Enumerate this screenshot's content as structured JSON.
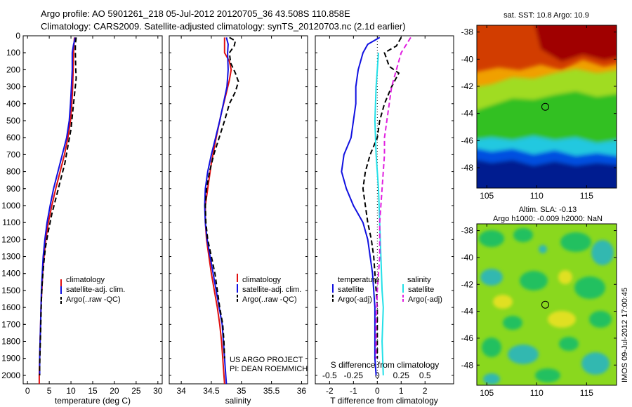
{
  "header": {
    "title_line1": "Argo profile: AO 5901261_218 05-Jul-2012 20120705_36 43.508S 110.858E",
    "title_line2": "Climatology: CARS2009. Satellite-adjusted climatology: synTS_20120703.nc (2.1d earlier)"
  },
  "colors": {
    "climatology": "#e01010",
    "satellite": "#1010e0",
    "argo": "#000000",
    "cyan": "#22e0e8",
    "magenta": "#e020e0"
  },
  "chart_data": [
    {
      "type": "line",
      "name": "temperature-panel",
      "xlabel": "temperature (deg C)",
      "ylabel": "",
      "xlim": [
        -1,
        31
      ],
      "ylim": [
        2050,
        0
      ],
      "xticks": [
        "0",
        "5",
        "10",
        "15",
        "20",
        "25",
        "30"
      ],
      "yticks": [
        "0",
        "100",
        "200",
        "300",
        "400",
        "500",
        "600",
        "700",
        "800",
        "900",
        "1000",
        "1100",
        "1200",
        "1300",
        "1400",
        "1500",
        "1600",
        "1700",
        "1800",
        "1900",
        "2000"
      ],
      "legend": [
        "climatology",
        "satellite-adj. clim.",
        "Argo(..raw -QC)"
      ],
      "legend_placement": "lower-center",
      "series": [
        {
          "name": "climatology",
          "color": "#e01010",
          "dash": "solid",
          "points": [
            [
              10.8,
              10
            ],
            [
              10.7,
              50
            ],
            [
              10.6,
              100
            ],
            [
              10.5,
              200
            ],
            [
              10.4,
              300
            ],
            [
              10.2,
              400
            ],
            [
              9.9,
              500
            ],
            [
              9.3,
              600
            ],
            [
              8.5,
              700
            ],
            [
              7.5,
              800
            ],
            [
              6.5,
              900
            ],
            [
              5.6,
              1000
            ],
            [
              4.8,
              1100
            ],
            [
              4.2,
              1200
            ],
            [
              3.8,
              1300
            ],
            [
              3.5,
              1400
            ],
            [
              3.3,
              1500
            ],
            [
              3.1,
              1600
            ],
            [
              3.0,
              1700
            ],
            [
              2.9,
              1800
            ],
            [
              2.8,
              1900
            ],
            [
              2.7,
              2000
            ],
            [
              2.7,
              2050
            ]
          ]
        },
        {
          "name": "satellite-adj. clim.",
          "color": "#1010e0",
          "dash": "solid",
          "points": [
            [
              11.0,
              10
            ],
            [
              10.6,
              50
            ],
            [
              10.3,
              100
            ],
            [
              10.3,
              200
            ],
            [
              10.1,
              300
            ],
            [
              9.9,
              400
            ],
            [
              9.6,
              500
            ],
            [
              9.0,
              600
            ],
            [
              8.0,
              700
            ],
            [
              7.0,
              800
            ],
            [
              6.0,
              900
            ],
            [
              5.2,
              1000
            ],
            [
              4.5,
              1100
            ],
            [
              4.0,
              1200
            ],
            [
              3.6,
              1300
            ],
            [
              3.4,
              1400
            ],
            [
              3.2,
              1500
            ],
            [
              3.1,
              1600
            ],
            [
              3.0,
              1700
            ],
            [
              2.9,
              1800
            ],
            [
              2.8,
              1900
            ],
            [
              2.8,
              2000
            ]
          ]
        },
        {
          "name": "Argo(..raw -QC)",
          "color": "#000000",
          "dash": "dashed",
          "points": [
            [
              11.2,
              10
            ],
            [
              11.0,
              50
            ],
            [
              11.0,
              100
            ],
            [
              11.1,
              200
            ],
            [
              11.2,
              250
            ],
            [
              10.8,
              350
            ],
            [
              10.4,
              450
            ],
            [
              10.0,
              550
            ],
            [
              9.3,
              650
            ],
            [
              8.6,
              750
            ],
            [
              7.6,
              850
            ],
            [
              6.6,
              950
            ],
            [
              5.6,
              1050
            ],
            [
              4.8,
              1150
            ],
            [
              4.1,
              1250
            ],
            [
              3.7,
              1350
            ],
            [
              3.4,
              1450
            ],
            [
              3.2,
              1550
            ],
            [
              3.1,
              1650
            ],
            [
              3.0,
              1750
            ],
            [
              2.9,
              1850
            ],
            [
              2.8,
              1950
            ],
            [
              2.8,
              2000
            ]
          ]
        }
      ]
    },
    {
      "type": "line",
      "name": "salinity-panel",
      "xlabel": "salinity",
      "xlim": [
        33.8,
        36.1
      ],
      "ylim": [
        2050,
        0
      ],
      "xticks": [
        "34",
        "34.5",
        "35",
        "35.5",
        "36"
      ],
      "legend": [
        "climatology",
        "satellite-adj. clim.",
        "Argo(..raw -QC)"
      ],
      "legend_placement": "lower-center",
      "series": [
        {
          "name": "climatology",
          "color": "#e01010",
          "dash": "solid",
          "points": [
            [
              34.72,
              10
            ],
            [
              34.72,
              50
            ],
            [
              34.72,
              100
            ],
            [
              34.8,
              150
            ],
            [
              34.83,
              200
            ],
            [
              34.8,
              260
            ],
            [
              34.74,
              350
            ],
            [
              34.67,
              450
            ],
            [
              34.58,
              600
            ],
            [
              34.5,
              750
            ],
            [
              34.44,
              900
            ],
            [
              34.4,
              1000
            ],
            [
              34.4,
              1100
            ],
            [
              34.42,
              1200
            ],
            [
              34.46,
              1300
            ],
            [
              34.5,
              1400
            ],
            [
              34.55,
              1500
            ],
            [
              34.6,
              1600
            ],
            [
              34.64,
              1700
            ],
            [
              34.67,
              1800
            ],
            [
              34.69,
              1900
            ],
            [
              34.71,
              2000
            ],
            [
              34.72,
              2050
            ]
          ]
        },
        {
          "name": "satellite-adj. clim.",
          "color": "#1010e0",
          "dash": "solid",
          "points": [
            [
              34.75,
              10
            ],
            [
              34.78,
              50
            ],
            [
              34.77,
              100
            ],
            [
              34.78,
              200
            ],
            [
              34.76,
              300
            ],
            [
              34.7,
              400
            ],
            [
              34.64,
              500
            ],
            [
              34.57,
              600
            ],
            [
              34.5,
              700
            ],
            [
              34.44,
              800
            ],
            [
              34.4,
              900
            ],
            [
              34.39,
              1000
            ],
            [
              34.4,
              1100
            ],
            [
              34.43,
              1200
            ],
            [
              34.48,
              1300
            ],
            [
              34.53,
              1400
            ],
            [
              34.58,
              1500
            ],
            [
              34.63,
              1600
            ],
            [
              34.68,
              1700
            ],
            [
              34.7,
              1800
            ],
            [
              34.72,
              1900
            ],
            [
              34.74,
              2000
            ],
            [
              34.75,
              2050
            ]
          ]
        },
        {
          "name": "Argo(..raw -QC)",
          "color": "#000000",
          "dash": "dashed",
          "points": [
            [
              34.8,
              10
            ],
            [
              34.9,
              30
            ],
            [
              34.88,
              60
            ],
            [
              34.8,
              100
            ],
            [
              34.82,
              160
            ],
            [
              34.9,
              220
            ],
            [
              34.95,
              270
            ],
            [
              34.9,
              330
            ],
            [
              34.8,
              400
            ],
            [
              34.72,
              500
            ],
            [
              34.63,
              600
            ],
            [
              34.54,
              700
            ],
            [
              34.47,
              800
            ],
            [
              34.42,
              900
            ],
            [
              34.4,
              1000
            ],
            [
              34.41,
              1100
            ],
            [
              34.44,
              1200
            ],
            [
              34.5,
              1300
            ],
            [
              34.56,
              1400
            ],
            [
              34.6,
              1500
            ],
            [
              34.64,
              1600
            ],
            [
              34.69,
              1700
            ],
            [
              34.71,
              1800
            ],
            [
              34.72,
              1900
            ]
          ]
        }
      ]
    },
    {
      "type": "line",
      "name": "difference-panel",
      "xlabel": "T difference from climatology",
      "top_axis_label": "S difference from climatology",
      "xlim": [
        -2.6,
        3.2
      ],
      "ylim": [
        2050,
        0
      ],
      "xticks": [
        "-2",
        "-1",
        "0",
        "1",
        "2"
      ],
      "top_ticks": [
        "-0.5",
        "-0.25",
        "0",
        "0.25",
        "0.5"
      ],
      "legend_groups": [
        {
          "heading": "temperature",
          "entries": [
            "satellite",
            "Argo(-adj)"
          ]
        },
        {
          "heading": "salinity",
          "entries": [
            "satellite",
            "Argo(-adj)"
          ]
        }
      ],
      "legend_placement": "lower-center",
      "series": [
        {
          "name": "temperature satellite",
          "color": "#1010e0",
          "dash": "solid",
          "points": [
            [
              0.1,
              10
            ],
            [
              -0.4,
              50
            ],
            [
              -0.6,
              100
            ],
            [
              -0.8,
              200
            ],
            [
              -0.9,
              300
            ],
            [
              -0.9,
              400
            ],
            [
              -1.0,
              500
            ],
            [
              -1.1,
              600
            ],
            [
              -1.4,
              700
            ],
            [
              -1.5,
              800
            ],
            [
              -1.3,
              900
            ],
            [
              -1.0,
              1000
            ],
            [
              -0.6,
              1100
            ],
            [
              -0.4,
              1200
            ],
            [
              -0.3,
              1300
            ],
            [
              -0.2,
              1400
            ],
            [
              -0.15,
              1500
            ],
            [
              -0.1,
              1600
            ],
            [
              -0.1,
              1800
            ],
            [
              -0.1,
              1900
            ],
            [
              -0.05,
              2000
            ]
          ]
        },
        {
          "name": "temperature Argo(-adj)",
          "color": "#000000",
          "dash": "dashed",
          "points": [
            [
              1.0,
              10
            ],
            [
              0.8,
              60
            ],
            [
              0.3,
              100
            ],
            [
              0.5,
              180
            ],
            [
              0.9,
              220
            ],
            [
              0.6,
              300
            ],
            [
              0.3,
              400
            ],
            [
              0.1,
              500
            ],
            [
              0.0,
              600
            ],
            [
              -0.3,
              700
            ],
            [
              -0.5,
              800
            ],
            [
              -0.6,
              900
            ],
            [
              -0.5,
              1000
            ],
            [
              -0.4,
              1100
            ],
            [
              -0.25,
              1200
            ],
            [
              -0.15,
              1300
            ],
            [
              -0.1,
              1400
            ],
            [
              -0.05,
              1500
            ],
            [
              0.0,
              1600
            ],
            [
              0.0,
              1800
            ],
            [
              0.0,
              1900
            ]
          ]
        },
        {
          "name": "salinity satellite",
          "color": "#22e0e8",
          "dash": "solid",
          "points": [
            [
              0.05,
              100
            ],
            [
              -0.05,
              300
            ],
            [
              -0.1,
              500
            ],
            [
              -0.05,
              700
            ],
            [
              0.05,
              900
            ],
            [
              0.1,
              1100
            ],
            [
              0.15,
              1300
            ],
            [
              0.2,
              1500
            ],
            [
              0.25,
              1600
            ],
            [
              0.2,
              1800
            ],
            [
              0.25,
              2000
            ]
          ]
        },
        {
          "name": "salinity Argo(-adj)",
          "color": "#e020e0",
          "dash": "dashed",
          "points": [
            [
              1.4,
              10
            ],
            [
              1.0,
              100
            ],
            [
              0.8,
              200
            ],
            [
              0.6,
              300
            ],
            [
              0.5,
              400
            ],
            [
              0.4,
              500
            ],
            [
              0.3,
              600
            ],
            [
              0.3,
              700
            ],
            [
              0.2,
              900
            ],
            [
              0.1,
              1100
            ],
            [
              0.1,
              1300
            ],
            [
              0.0,
              1500
            ],
            [
              -0.05,
              1700
            ],
            [
              -0.05,
              1900
            ]
          ]
        }
      ]
    },
    {
      "type": "heatmap",
      "name": "sst-map",
      "title": "sat. SST: 10.8 Argo: 10.9",
      "xlim": [
        104,
        118
      ],
      "ylim": [
        -49.5,
        -37.5
      ],
      "xticks": [
        "105",
        "110",
        "115"
      ],
      "yticks": [
        "-38",
        "-40",
        "-42",
        "-44",
        "-46",
        "-48"
      ],
      "marker": [
        110.858,
        -43.508
      ]
    },
    {
      "type": "heatmap",
      "name": "sla-map",
      "title_line1": "Altim. SLA: -0.13",
      "title_line2": "Argo h1000: -0.009 h2000: NaN",
      "xlim": [
        104,
        118
      ],
      "ylim": [
        -49.5,
        -37.5
      ],
      "xticks": [
        "105",
        "110",
        "115"
      ],
      "yticks": [
        "-38",
        "-40",
        "-42",
        "-44",
        "-46",
        "-48"
      ],
      "marker": [
        110.858,
        -43.508
      ]
    }
  ],
  "credits": {
    "project_line1": "US ARGO PROJECT",
    "project_line2": "PI: DEAN ROEMMICH",
    "stamp": "IMOS 09-Jul-2012 17:00:45"
  }
}
